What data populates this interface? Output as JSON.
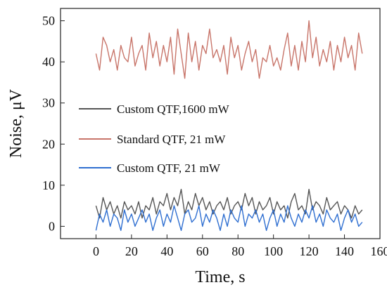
{
  "chart_data": {
    "type": "line",
    "xlabel": "Time, s",
    "ylabel": "Noise, μV",
    "xlim": [
      -20,
      160
    ],
    "ylim": [
      -3,
      53
    ],
    "x_ticks": [
      0,
      20,
      40,
      60,
      80,
      100,
      120,
      140,
      160
    ],
    "y_ticks": [
      0,
      10,
      20,
      30,
      40,
      50
    ],
    "grid": false,
    "legend_position": "middle-left",
    "series": [
      {
        "name": "Custom QTF,1600 mW",
        "color": "#555555",
        "x": [
          0,
          2,
          4,
          6,
          8,
          10,
          12,
          14,
          16,
          18,
          20,
          22,
          24,
          26,
          28,
          30,
          32,
          34,
          36,
          38,
          40,
          42,
          44,
          46,
          48,
          50,
          52,
          54,
          56,
          58,
          60,
          62,
          64,
          66,
          68,
          70,
          72,
          74,
          76,
          78,
          80,
          82,
          84,
          86,
          88,
          90,
          92,
          94,
          96,
          98,
          100,
          102,
          104,
          106,
          108,
          110,
          112,
          114,
          116,
          118,
          120,
          122,
          124,
          126,
          128,
          130,
          132,
          134,
          136,
          138,
          140,
          142,
          144,
          146,
          148,
          150
        ],
        "y": [
          5,
          2,
          7,
          4,
          6,
          3,
          5,
          2,
          6,
          4,
          5,
          3,
          6,
          2,
          5,
          4,
          7,
          3,
          6,
          5,
          8,
          4,
          7,
          5,
          9,
          3,
          6,
          4,
          8,
          5,
          7,
          4,
          6,
          3,
          5,
          6,
          4,
          7,
          3,
          5,
          6,
          4,
          8,
          5,
          7,
          3,
          6,
          4,
          5,
          7,
          3,
          6,
          4,
          5,
          2,
          6,
          8,
          4,
          5,
          3,
          9,
          4,
          6,
          5,
          3,
          7,
          4,
          5,
          6,
          3,
          5,
          4,
          2,
          5,
          3,
          4
        ]
      },
      {
        "name": "Standard QTF, 21 mW",
        "color": "#c8756a",
        "x": [
          0,
          2,
          4,
          6,
          8,
          10,
          12,
          14,
          16,
          18,
          20,
          22,
          24,
          26,
          28,
          30,
          32,
          34,
          36,
          38,
          40,
          42,
          44,
          46,
          48,
          50,
          52,
          54,
          56,
          58,
          60,
          62,
          64,
          66,
          68,
          70,
          72,
          74,
          76,
          78,
          80,
          82,
          84,
          86,
          88,
          90,
          92,
          94,
          96,
          98,
          100,
          102,
          104,
          106,
          108,
          110,
          112,
          114,
          116,
          118,
          120,
          122,
          124,
          126,
          128,
          130,
          132,
          134,
          136,
          138,
          140,
          142,
          144,
          146,
          148,
          150
        ],
        "y": [
          42,
          38,
          46,
          44,
          40,
          43,
          38,
          44,
          41,
          40,
          46,
          39,
          42,
          44,
          38,
          47,
          41,
          45,
          39,
          44,
          40,
          46,
          37,
          48,
          42,
          36,
          47,
          40,
          45,
          38,
          44,
          42,
          48,
          41,
          43,
          40,
          44,
          37,
          46,
          41,
          44,
          38,
          42,
          45,
          40,
          43,
          36,
          41,
          40,
          44,
          39,
          41,
          38,
          43,
          47,
          39,
          44,
          38,
          45,
          40,
          50,
          41,
          46,
          39,
          43,
          40,
          45,
          38,
          44,
          40,
          46,
          41,
          44,
          38,
          47,
          42
        ]
      },
      {
        "name": "Custom QTF, 21 mW",
        "color": "#2f6fd1",
        "x": [
          0,
          2,
          4,
          6,
          8,
          10,
          12,
          14,
          16,
          18,
          20,
          22,
          24,
          26,
          28,
          30,
          32,
          34,
          36,
          38,
          40,
          42,
          44,
          46,
          48,
          50,
          52,
          54,
          56,
          58,
          60,
          62,
          64,
          66,
          68,
          70,
          72,
          74,
          76,
          78,
          80,
          82,
          84,
          86,
          88,
          90,
          92,
          94,
          96,
          98,
          100,
          102,
          104,
          106,
          108,
          110,
          112,
          114,
          116,
          118,
          120,
          122,
          124,
          126,
          128,
          130,
          132,
          134,
          136,
          138,
          140,
          142,
          144,
          146,
          148,
          150
        ],
        "y": [
          -1,
          3,
          1,
          4,
          0,
          3,
          2,
          -1,
          4,
          1,
          3,
          0,
          2,
          4,
          1,
          3,
          -1,
          2,
          4,
          0,
          3,
          1,
          5,
          2,
          -1,
          3,
          4,
          1,
          2,
          5,
          0,
          3,
          1,
          4,
          2,
          -1,
          3,
          0,
          4,
          2,
          1,
          5,
          0,
          3,
          2,
          4,
          1,
          3,
          -1,
          2,
          4,
          0,
          3,
          1,
          5,
          2,
          0,
          3,
          1,
          4,
          2,
          5,
          1,
          3,
          0,
          4,
          2,
          1,
          3,
          -1,
          2,
          4,
          1,
          3,
          0,
          1
        ]
      }
    ]
  }
}
